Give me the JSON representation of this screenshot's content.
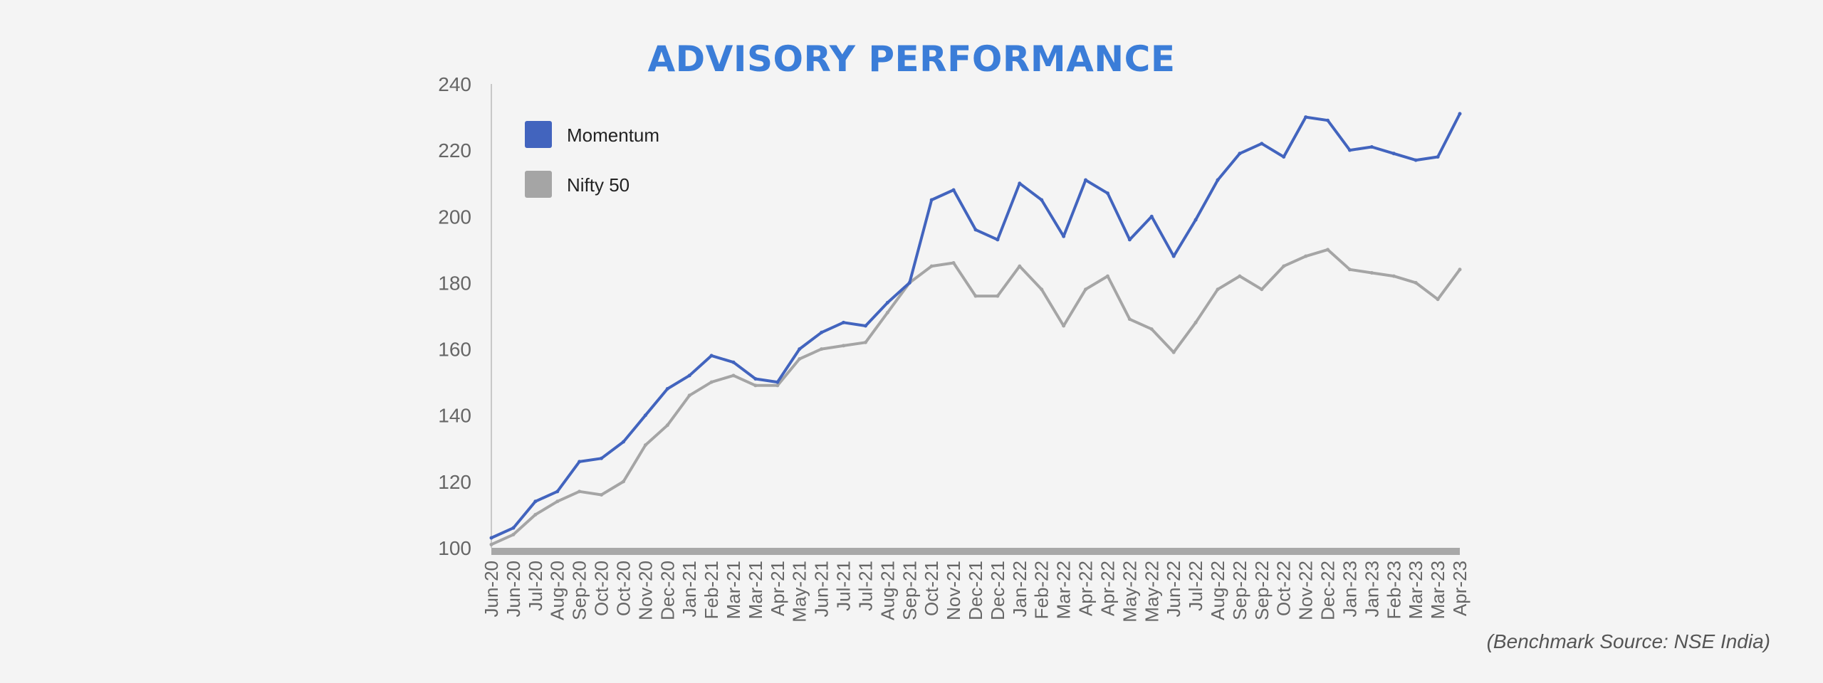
{
  "chart_data": {
    "type": "line",
    "title": "ADVISORY PERFORMANCE",
    "xlabel": "",
    "ylabel": "",
    "ylim": [
      100,
      240
    ],
    "yticks": [
      100,
      120,
      140,
      160,
      180,
      200,
      220,
      240
    ],
    "grid": false,
    "legend_position": "top-left",
    "x": [
      "Jun-20",
      "Jun-20",
      "Jul-20",
      "Aug-20",
      "Sep-20",
      "Oct-20",
      "Oct-20",
      "Nov-20",
      "Dec-20",
      "Jan-21",
      "Feb-21",
      "Mar-21",
      "Mar-21",
      "Apr-21",
      "May-21",
      "Jun-21",
      "Jul-21",
      "Jul-21",
      "Aug-21",
      "Sep-21",
      "Oct-21",
      "Nov-21",
      "Dec-21",
      "Dec-21",
      "Jan-22",
      "Feb-22",
      "Mar-22",
      "Apr-22",
      "Apr-22",
      "May-22",
      "May-22",
      "Jun-22",
      "Jul-22",
      "Aug-22",
      "Sep-22",
      "Sep-22",
      "Oct-22",
      "Nov-22",
      "Dec-22",
      "Jan-23",
      "Jan-23",
      "Feb-23",
      "Mar-23",
      "Mar-23",
      "Apr-23"
    ],
    "series": [
      {
        "name": "Momentum",
        "color": "#4264be",
        "values": [
          103,
          106,
          114,
          117,
          126,
          127,
          132,
          140,
          148,
          152,
          158,
          156,
          151,
          150,
          160,
          165,
          168,
          167,
          174,
          180,
          205,
          208,
          196,
          193,
          210,
          205,
          194,
          211,
          207,
          193,
          200,
          188,
          199,
          211,
          219,
          222,
          218,
          230,
          229,
          220,
          221,
          219,
          217,
          218,
          231
        ]
      },
      {
        "name": "Nifty 50",
        "color": "#a5a5a5",
        "values": [
          101,
          104,
          110,
          114,
          117,
          116,
          120,
          131,
          137,
          146,
          150,
          152,
          149,
          149,
          157,
          160,
          161,
          162,
          171,
          180,
          185,
          186,
          176,
          176,
          185,
          178,
          167,
          178,
          182,
          169,
          166,
          159,
          168,
          178,
          182,
          178,
          185,
          188,
          190,
          184,
          183,
          182,
          180,
          175,
          184
        ]
      }
    ]
  },
  "footnote": "(Benchmark Source: NSE India)"
}
